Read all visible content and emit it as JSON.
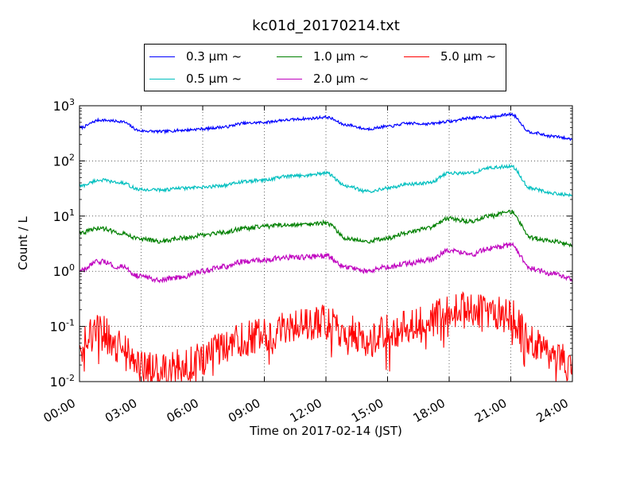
{
  "chart_data": {
    "type": "line",
    "title": "kc01d_20170214.txt",
    "xlabel": "Time on 2017-02-14 (JST)",
    "ylabel": "Count / L",
    "yscale": "log",
    "ylim": [
      0.01,
      1000
    ],
    "xlim": [
      "00:00",
      "24:00"
    ],
    "grid": true,
    "legend_placement": "top-center",
    "x_ticks": [
      "00:00",
      "03:00",
      "06:00",
      "09:00",
      "12:00",
      "15:00",
      "18:00",
      "21:00",
      "24:00"
    ],
    "y_ticks": [
      {
        "base": "10",
        "exp": "-2",
        "value": 0.01
      },
      {
        "base": "10",
        "exp": "-1",
        "value": 0.1
      },
      {
        "base": "10",
        "exp": "0",
        "value": 1
      },
      {
        "base": "10",
        "exp": "1",
        "value": 10
      },
      {
        "base": "10",
        "exp": "2",
        "value": 100
      },
      {
        "base": "10",
        "exp": "3",
        "value": 1000
      }
    ],
    "x_hours": [
      0,
      1,
      2,
      3,
      4,
      5,
      6,
      7,
      8,
      9,
      10,
      11,
      12,
      13,
      14,
      15,
      16,
      17,
      18,
      19,
      20,
      21,
      22,
      23,
      24
    ],
    "series": [
      {
        "name": "0.3 μm ~",
        "color": "#0000ff",
        "values": [
          400,
          550,
          520,
          350,
          340,
          360,
          380,
          410,
          480,
          500,
          550,
          580,
          620,
          450,
          380,
          420,
          480,
          470,
          520,
          600,
          620,
          700,
          330,
          280,
          250
        ]
      },
      {
        "name": "0.5 μm ~",
        "color": "#00bfbf",
        "values": [
          35,
          45,
          40,
          30,
          30,
          32,
          33,
          36,
          42,
          45,
          52,
          55,
          60,
          35,
          28,
          32,
          38,
          40,
          60,
          60,
          75,
          80,
          32,
          26,
          24
        ]
      },
      {
        "name": "1.0 μm ~",
        "color": "#008000",
        "values": [
          5,
          6,
          5,
          3.8,
          3.5,
          4,
          4.5,
          5,
          6,
          6.5,
          7,
          7,
          7.5,
          4,
          3.5,
          4,
          5,
          6,
          9,
          8,
          10,
          12,
          4,
          3.5,
          3
        ]
      },
      {
        "name": "2.0 μm ~",
        "color": "#bf00bf",
        "values": [
          1.0,
          1.5,
          1.2,
          0.8,
          0.7,
          0.8,
          1.0,
          1.2,
          1.5,
          1.6,
          1.8,
          1.8,
          1.9,
          1.2,
          1.0,
          1.2,
          1.4,
          1.6,
          2.4,
          2.0,
          2.6,
          3.0,
          1.1,
          0.9,
          0.75
        ]
      },
      {
        "name": "5.0 μm ~",
        "color": "#ff0000",
        "values": [
          0.05,
          0.08,
          0.04,
          0.02,
          0.015,
          0.02,
          0.025,
          0.04,
          0.06,
          0.07,
          0.09,
          0.1,
          0.12,
          0.08,
          0.06,
          0.08,
          0.1,
          0.12,
          0.2,
          0.2,
          0.18,
          0.15,
          0.05,
          0.03,
          0.02
        ]
      }
    ]
  }
}
